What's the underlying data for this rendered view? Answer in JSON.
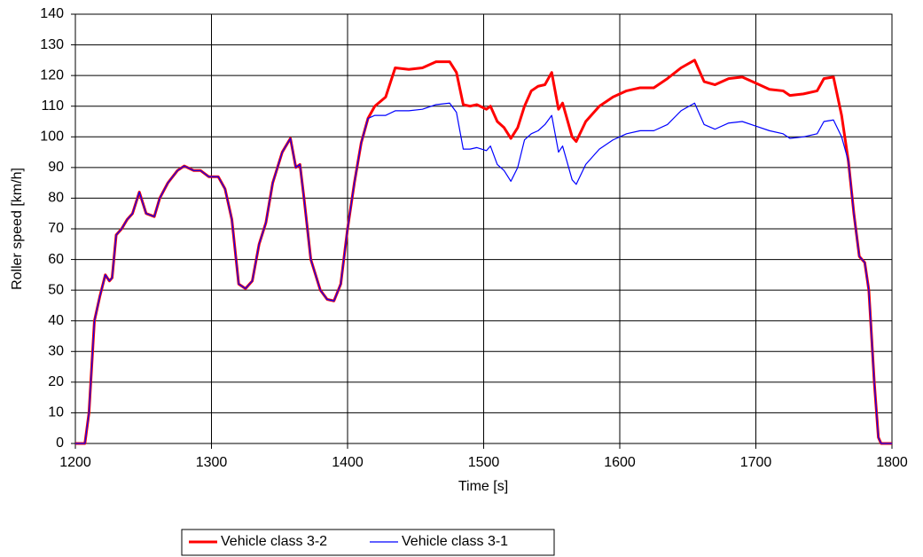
{
  "chart_data": {
    "type": "line",
    "xlabel": "Time [s]",
    "ylabel": "Roller speed [km/h]",
    "x": [
      1200,
      1207,
      1210,
      1214,
      1218,
      1222,
      1225,
      1227,
      1230,
      1234,
      1238,
      1242,
      1247,
      1252,
      1258,
      1262,
      1268,
      1275,
      1280,
      1287,
      1292,
      1298,
      1305,
      1310,
      1315,
      1320,
      1325,
      1330,
      1335,
      1340,
      1345,
      1352,
      1358,
      1362,
      1365,
      1368,
      1373,
      1380,
      1385,
      1390,
      1395,
      1400,
      1405,
      1410,
      1415,
      1420,
      1428,
      1435,
      1445,
      1455,
      1465,
      1475,
      1480,
      1485,
      1490,
      1495,
      1502,
      1505,
      1510,
      1515,
      1520,
      1525,
      1530,
      1535,
      1540,
      1545,
      1550,
      1555,
      1558,
      1565,
      1568,
      1575,
      1585,
      1595,
      1605,
      1615,
      1625,
      1635,
      1645,
      1655,
      1662,
      1670,
      1680,
      1690,
      1700,
      1710,
      1720,
      1725,
      1735,
      1745,
      1750,
      1757,
      1763,
      1768,
      1772,
      1776,
      1780,
      1783,
      1787,
      1790,
      1792,
      1800
    ],
    "series": [
      {
        "name": "Vehicle class 3-2",
        "color": "#ff0000",
        "values": [
          0,
          0,
          10,
          40,
          48,
          55,
          53,
          54,
          68,
          70,
          73,
          75,
          82,
          75,
          74,
          80,
          85,
          89,
          90.5,
          89,
          89,
          87,
          87,
          83,
          73,
          52,
          50.5,
          53,
          65,
          72,
          85,
          95,
          99.5,
          90,
          91,
          80,
          60,
          50,
          47,
          46.5,
          52,
          70,
          85,
          98,
          106,
          110,
          113,
          122.5,
          122,
          122.5,
          124.5,
          124.5,
          121,
          110.5,
          110,
          110.5,
          109,
          110,
          105,
          103,
          99.5,
          103,
          110,
          115,
          116.5,
          117,
          121,
          109,
          111,
          100,
          98.5,
          105,
          110,
          113,
          115,
          116,
          116,
          119,
          122.5,
          125,
          118,
          117,
          119,
          119.5,
          117.5,
          115.5,
          115,
          113.5,
          114,
          115,
          119,
          119.5,
          107,
          92,
          75,
          61,
          59,
          50,
          20,
          2,
          0,
          0
        ]
      },
      {
        "name": "Vehicle class 3-1",
        "color": "#0000ff",
        "values": [
          0,
          0,
          10,
          40,
          48,
          55,
          53,
          54,
          68,
          70,
          73,
          75,
          82,
          75,
          74,
          80,
          85,
          89,
          90.5,
          89,
          89,
          87,
          87,
          83,
          73,
          52,
          50.5,
          53,
          65,
          72,
          85,
          95,
          99.5,
          90,
          91,
          80,
          60,
          50,
          47,
          46.5,
          52,
          70,
          85,
          98,
          106,
          107,
          107,
          108.5,
          108.5,
          109,
          110.5,
          111,
          108,
          96,
          96,
          96.5,
          95.5,
          97,
          91,
          89,
          85.5,
          90,
          99,
          101,
          102,
          104,
          107,
          95,
          97,
          86,
          84.5,
          91,
          96,
          99,
          101,
          102,
          102,
          104,
          108.5,
          111,
          104,
          102.5,
          104.5,
          105,
          103.5,
          102,
          101,
          99.5,
          100,
          101,
          105,
          105.5,
          100,
          92,
          75,
          61,
          59,
          50,
          20,
          2,
          0,
          0
        ]
      }
    ],
    "xlim": [
      1200,
      1800
    ],
    "xticks": [
      1200,
      1300,
      1400,
      1500,
      1600,
      1700,
      1800
    ],
    "ylim": [
      0,
      140
    ],
    "yticks": [
      0,
      10,
      20,
      30,
      40,
      50,
      60,
      70,
      80,
      90,
      100,
      110,
      120,
      130,
      140
    ],
    "grid": true,
    "legend": "bottom"
  }
}
